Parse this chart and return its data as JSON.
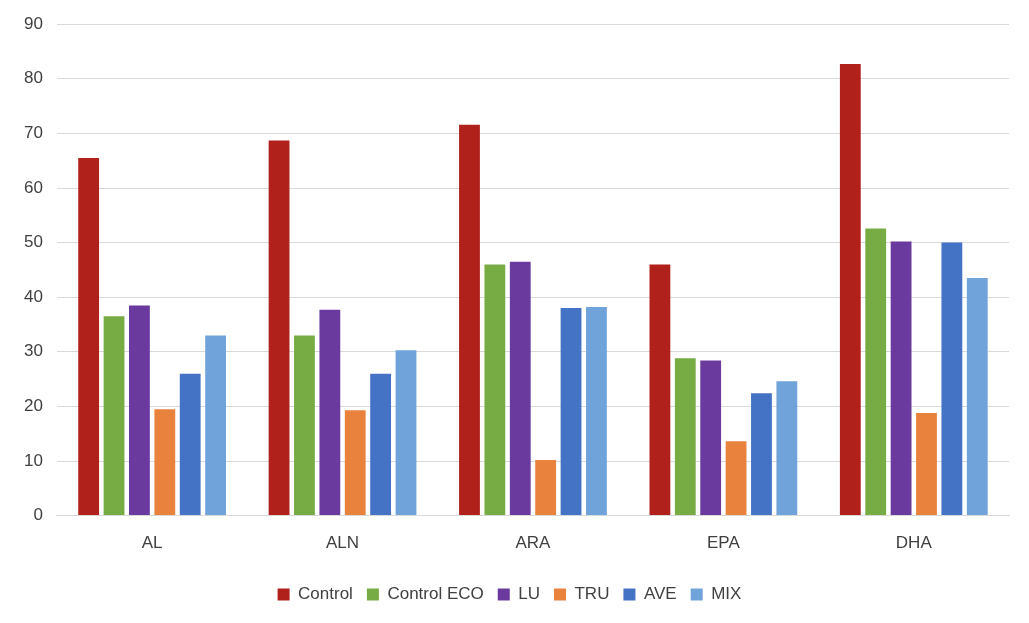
{
  "chart_data": {
    "type": "bar",
    "categories": [
      "AL",
      "ALN",
      "ARA",
      "EPA",
      "DHA"
    ],
    "series": [
      {
        "name": "Control",
        "color": "#b0211b",
        "values": [
          65.5,
          68.7,
          71.6,
          46,
          82.7
        ]
      },
      {
        "name": "Control ECO",
        "color": "#77ab44",
        "values": [
          36.5,
          33,
          46,
          28.8,
          52.6
        ]
      },
      {
        "name": "LU",
        "color": "#6a3a9e",
        "values": [
          38.5,
          37.7,
          46.5,
          28.4,
          50.2
        ]
      },
      {
        "name": "TRU",
        "color": "#e8823c",
        "values": [
          19.5,
          19.3,
          10.2,
          13.6,
          18.8
        ]
      },
      {
        "name": "AVE",
        "color": "#4472c4",
        "values": [
          26,
          26,
          38,
          22.4,
          50
        ]
      },
      {
        "name": "MIX",
        "color": "#6fa3d9",
        "values": [
          33,
          30.3,
          38.2,
          24.6,
          43.5
        ]
      }
    ],
    "ylim": [
      0,
      90
    ],
    "yticks": [
      0,
      10,
      20,
      30,
      40,
      50,
      60,
      70,
      80,
      90
    ],
    "grid": "y",
    "legend": "bottom"
  }
}
